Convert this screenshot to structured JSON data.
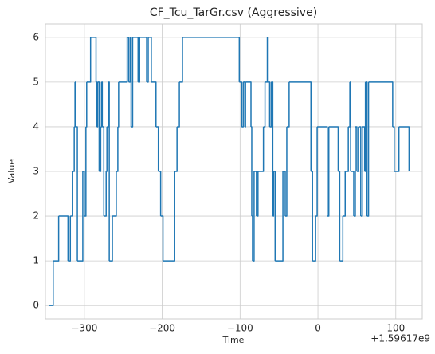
{
  "chart_data": {
    "type": "step",
    "title": "CF_Tcu_TarGr.csv (Aggressive)",
    "x_label": "Time",
    "y_label": "Value",
    "x_offset_label": "+1.59617e9",
    "color": "#1f77b4",
    "grid": true,
    "x": [
      -345,
      -340,
      -333,
      -321,
      -318,
      -315,
      -313,
      -312,
      -311,
      -309,
      -302,
      -300,
      -298,
      -297,
      -292,
      -285,
      -284,
      -283,
      -281,
      -279,
      -278,
      -277,
      -275,
      -272,
      -271,
      -269,
      -268,
      -264,
      -259,
      -257,
      -256,
      -245,
      -243,
      -241,
      -240,
      -238,
      -231,
      -229,
      -220,
      -218,
      -214,
      -208,
      -205,
      -202,
      -199,
      -184,
      -181,
      -178,
      -174,
      -101,
      -98,
      -96,
      -94,
      -93,
      -86,
      -85,
      -84,
      -82,
      -79,
      -77,
      -70,
      -68,
      -65,
      -64,
      -62,
      -60,
      -58,
      -57,
      -55,
      -45,
      -42,
      -40,
      -37,
      -9,
      -7,
      -3,
      -1,
      12,
      14,
      26,
      28,
      32,
      35,
      39,
      41,
      42,
      46,
      48,
      50,
      52,
      55,
      57,
      60,
      61,
      63,
      65,
      96,
      98,
      104,
      117
    ],
    "values": [
      0,
      1,
      2,
      1,
      2,
      3,
      4,
      5,
      4,
      1,
      3,
      2,
      4,
      5,
      6,
      5,
      4,
      5,
      3,
      4,
      5,
      4,
      2,
      3,
      4,
      5,
      1,
      2,
      3,
      4,
      5,
      6,
      5,
      6,
      4,
      6,
      5,
      6,
      5,
      6,
      5,
      4,
      3,
      2,
      1,
      3,
      4,
      5,
      6,
      5,
      4,
      5,
      4,
      5,
      4,
      2,
      1,
      3,
      2,
      3,
      4,
      5,
      6,
      5,
      4,
      5,
      2,
      3,
      1,
      3,
      2,
      4,
      5,
      3,
      1,
      2,
      4,
      2,
      4,
      3,
      1,
      2,
      3,
      4,
      5,
      3,
      2,
      4,
      3,
      4,
      2,
      4,
      3,
      5,
      2,
      5,
      4,
      3,
      4,
      3
    ],
    "xlim": [
      -350,
      134
    ],
    "ylim": [
      -0.3,
      6.3
    ],
    "xticks": [
      {
        "value": -300,
        "label": "−300"
      },
      {
        "value": -200,
        "label": "−200"
      },
      {
        "value": -100,
        "label": "−100"
      },
      0,
      100
    ],
    "yticks": [
      0,
      1,
      2,
      3,
      4,
      5,
      6
    ]
  }
}
